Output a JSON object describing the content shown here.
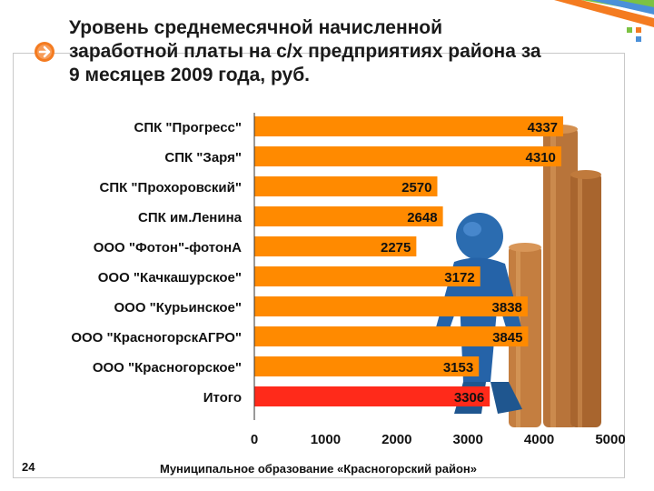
{
  "slide": {
    "title": "Уровень среднемесячной начисленной заработной платы на с/х предприятиях района за 9 месяцев 2009 года, руб.",
    "page_number": "24",
    "footer": "Муниципальное образование «Красногорский район»"
  },
  "colors": {
    "bar": "#ff8a00",
    "highlight": "#ff2a1a",
    "accent_stripe": "#7cc242",
    "accent_orange": "#f47b20"
  },
  "chart_data": {
    "type": "bar",
    "orientation": "horizontal",
    "categories": [
      "СПК \"Прогресс\"",
      "СПК \"Заря\"",
      "СПК \"Прохоровский\"",
      "СПК им.Ленина",
      "ООО \"Фотон\"-фотонА",
      "ООО \"Качкашурское\"",
      "ООО \"Курьинское\"",
      "ООО \"КрасногорскАГРО\"",
      "ООО \"Красногорское\"",
      "Итого"
    ],
    "values": [
      4337,
      4310,
      2570,
      2648,
      2275,
      3172,
      3838,
      3845,
      3153,
      3306
    ],
    "highlight_index": 9,
    "xlim": [
      0,
      5000
    ],
    "xticks": [
      "0",
      "1000",
      "2000",
      "3000",
      "4000",
      "5000"
    ],
    "title": "",
    "xlabel": "",
    "ylabel": "",
    "grid": false,
    "legend": "none"
  }
}
